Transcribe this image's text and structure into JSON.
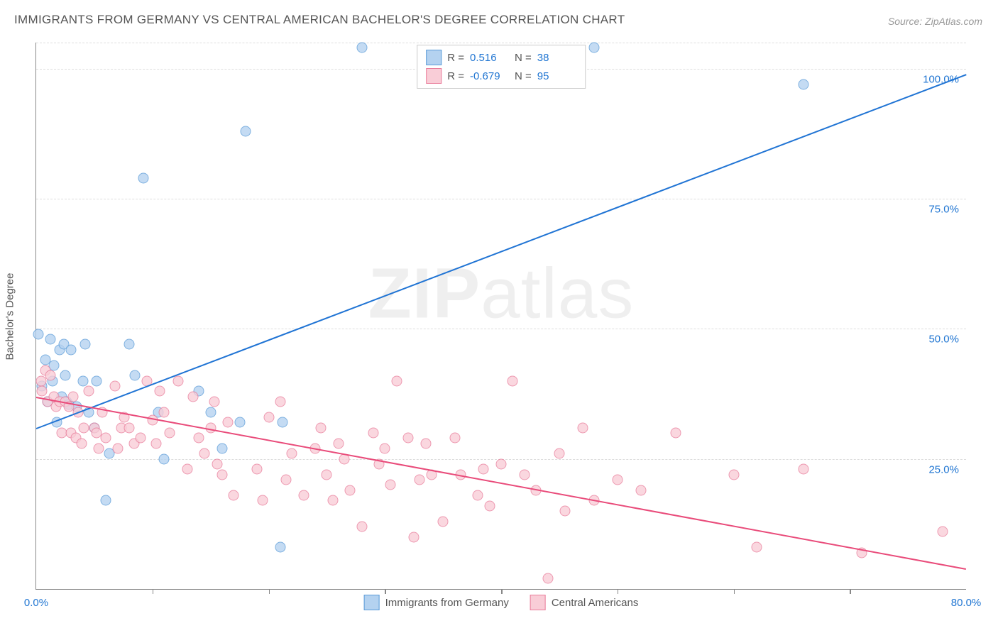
{
  "title": "IMMIGRANTS FROM GERMANY VS CENTRAL AMERICAN BACHELOR'S DEGREE CORRELATION CHART",
  "source": "Source: ZipAtlas.com",
  "ylabel": "Bachelor's Degree",
  "watermark_a": "ZIP",
  "watermark_b": "atlas",
  "chart": {
    "type": "scatter",
    "xlim": [
      0,
      80
    ],
    "ylim": [
      0,
      105
    ],
    "x_ticks": [
      0,
      80
    ],
    "x_tick_labels": [
      "0.0%",
      "80.0%"
    ],
    "x_minor_ticks": [
      10,
      20,
      30,
      40,
      50,
      60,
      70
    ],
    "y_gridlines": [
      25,
      50,
      75,
      100
    ],
    "y_grid_labels": [
      "25.0%",
      "50.0%",
      "75.0%",
      "100.0%"
    ],
    "grid_color": "#dddddd",
    "axis_color": "#888888",
    "background_color": "#ffffff",
    "label_color": "#2176d2",
    "point_radius": 6.5,
    "point_border_width": 1.5
  },
  "series": [
    {
      "name": "Immigrants from Germany",
      "fill": "#b4d2f0",
      "stroke": "#5a9bd8",
      "line_color": "#2074d4",
      "R": "0.516",
      "N": "38",
      "trend": {
        "x1": 0,
        "y1": 31,
        "x2": 80,
        "y2": 99
      },
      "points": [
        [
          0.2,
          49
        ],
        [
          0.5,
          39
        ],
        [
          0.8,
          44
        ],
        [
          1,
          36
        ],
        [
          1.2,
          48
        ],
        [
          1.4,
          40
        ],
        [
          1.5,
          43
        ],
        [
          1.8,
          32
        ],
        [
          2,
          46
        ],
        [
          2.2,
          37
        ],
        [
          2.4,
          47
        ],
        [
          2.5,
          41
        ],
        [
          2.6,
          36
        ],
        [
          2.8,
          35.5
        ],
        [
          3,
          46
        ],
        [
          3.5,
          35
        ],
        [
          4,
          40
        ],
        [
          4.2,
          47
        ],
        [
          4.5,
          34
        ],
        [
          5,
          31
        ],
        [
          5.2,
          40
        ],
        [
          6,
          17
        ],
        [
          6.3,
          26
        ],
        [
          8,
          47
        ],
        [
          8.5,
          41
        ],
        [
          9.2,
          79
        ],
        [
          10.5,
          34
        ],
        [
          11,
          25
        ],
        [
          14,
          38
        ],
        [
          15,
          34
        ],
        [
          16,
          27
        ],
        [
          17.5,
          32
        ],
        [
          18,
          88
        ],
        [
          21,
          8
        ],
        [
          21.2,
          32
        ],
        [
          28,
          104
        ],
        [
          48,
          104
        ],
        [
          66,
          97
        ]
      ]
    },
    {
      "name": "Central Americans",
      "fill": "#f9cdd7",
      "stroke": "#e97c9a",
      "line_color": "#e94b7a",
      "R": "-0.679",
      "N": "95",
      "trend": {
        "x1": 0,
        "y1": 37,
        "x2": 80,
        "y2": 4
      },
      "points": [
        [
          0.4,
          40
        ],
        [
          0.5,
          38
        ],
        [
          0.8,
          42
        ],
        [
          1,
          36
        ],
        [
          1.2,
          41
        ],
        [
          1.5,
          37
        ],
        [
          1.7,
          35
        ],
        [
          2,
          36
        ],
        [
          2.2,
          30
        ],
        [
          2.5,
          36
        ],
        [
          2.8,
          35
        ],
        [
          3,
          30
        ],
        [
          3.2,
          37
        ],
        [
          3.4,
          29
        ],
        [
          3.6,
          34
        ],
        [
          3.9,
          28
        ],
        [
          4.1,
          31
        ],
        [
          4.5,
          38
        ],
        [
          5,
          31
        ],
        [
          5.2,
          30
        ],
        [
          5.4,
          27
        ],
        [
          5.7,
          34
        ],
        [
          6,
          29
        ],
        [
          6.8,
          39
        ],
        [
          7,
          27
        ],
        [
          7.3,
          31
        ],
        [
          7.6,
          33
        ],
        [
          8,
          31
        ],
        [
          8.4,
          28
        ],
        [
          9,
          29
        ],
        [
          9.5,
          40
        ],
        [
          10,
          32.5
        ],
        [
          10.3,
          28
        ],
        [
          10.6,
          38
        ],
        [
          11,
          34
        ],
        [
          11.5,
          30
        ],
        [
          12.2,
          40
        ],
        [
          13,
          23
        ],
        [
          13.5,
          37
        ],
        [
          14,
          29
        ],
        [
          14.5,
          26
        ],
        [
          15,
          31
        ],
        [
          15.3,
          36
        ],
        [
          15.6,
          24
        ],
        [
          16,
          22
        ],
        [
          16.5,
          32
        ],
        [
          17,
          18
        ],
        [
          19,
          23
        ],
        [
          19.5,
          17
        ],
        [
          20,
          33
        ],
        [
          21,
          36
        ],
        [
          21.5,
          21
        ],
        [
          22,
          26
        ],
        [
          23,
          18
        ],
        [
          24,
          27
        ],
        [
          24.5,
          31
        ],
        [
          25,
          22
        ],
        [
          25.5,
          17
        ],
        [
          26,
          28
        ],
        [
          26.5,
          25
        ],
        [
          27,
          19
        ],
        [
          28,
          12
        ],
        [
          29,
          30
        ],
        [
          29.5,
          24
        ],
        [
          30,
          27
        ],
        [
          30.5,
          20
        ],
        [
          31,
          40
        ],
        [
          32,
          29
        ],
        [
          32.5,
          10
        ],
        [
          33,
          21
        ],
        [
          33.5,
          28
        ],
        [
          34,
          22
        ],
        [
          35,
          13
        ],
        [
          36,
          29
        ],
        [
          36.5,
          22
        ],
        [
          38,
          18
        ],
        [
          38.5,
          23
        ],
        [
          39,
          16
        ],
        [
          40,
          24
        ],
        [
          41,
          40
        ],
        [
          42,
          22
        ],
        [
          43,
          19
        ],
        [
          44,
          2
        ],
        [
          45,
          26
        ],
        [
          45.5,
          15
        ],
        [
          47,
          31
        ],
        [
          48,
          17
        ],
        [
          50,
          21
        ],
        [
          52,
          19
        ],
        [
          55,
          30
        ],
        [
          60,
          22
        ],
        [
          62,
          8
        ],
        [
          66,
          23
        ],
        [
          71,
          7
        ],
        [
          78,
          11
        ]
      ]
    }
  ],
  "legend_bottom": [
    {
      "label": "Immigrants from Germany",
      "series": 0
    },
    {
      "label": "Central Americans",
      "series": 1
    }
  ]
}
